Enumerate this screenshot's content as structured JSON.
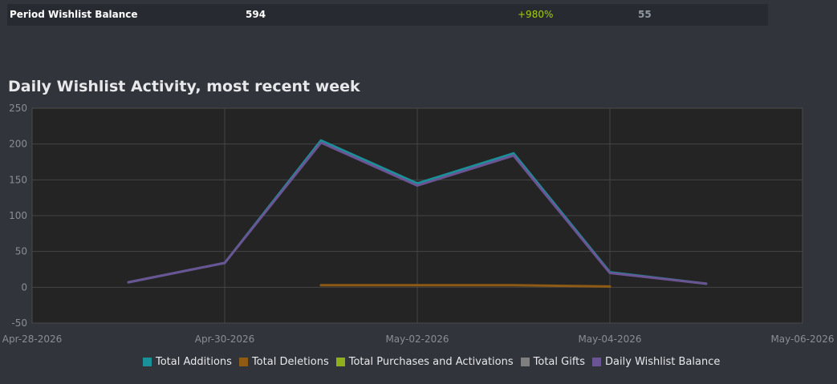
{
  "summary_row": {
    "label": "Period Wishlist Balance",
    "value": "594",
    "change": "+980%",
    "extra": "55"
  },
  "chart_data": {
    "type": "line",
    "title": "Daily Wishlist Activity, most recent week",
    "xlabel": "",
    "ylabel": "",
    "x_tick_labels": [
      "Apr-28-2026",
      "Apr-30-2026",
      "May-02-2026",
      "May-04-2026",
      "May-06-2026"
    ],
    "x_range": [
      "2026-04-28",
      "2026-05-06"
    ],
    "ylim": [
      -50,
      250
    ],
    "y_ticks": [
      -50,
      0,
      50,
      100,
      150,
      200,
      250
    ],
    "grid": true,
    "legend_position": "bottom",
    "x": [
      "2026-04-29",
      "2026-04-30",
      "2026-05-01",
      "2026-05-02",
      "2026-05-03",
      "2026-05-04",
      "2026-05-05"
    ],
    "series": [
      {
        "name": "Total Additions",
        "color": "#1a9099",
        "values": [
          7,
          34,
          205,
          145,
          187,
          21,
          5
        ]
      },
      {
        "name": "Total Deletions",
        "color": "#8e5a14",
        "values": [
          null,
          null,
          3,
          3,
          3,
          1,
          null
        ]
      },
      {
        "name": "Total Purchases and Activations",
        "color": "#8fb01c",
        "values": [
          null,
          null,
          null,
          null,
          null,
          null,
          null
        ]
      },
      {
        "name": "Total Gifts",
        "color": "#7f7f7f",
        "values": [
          null,
          null,
          null,
          null,
          null,
          null,
          null
        ]
      },
      {
        "name": "Daily Wishlist Balance",
        "color": "#6b5493",
        "values": [
          7,
          34,
          202,
          142,
          184,
          20,
          5
        ]
      }
    ]
  }
}
